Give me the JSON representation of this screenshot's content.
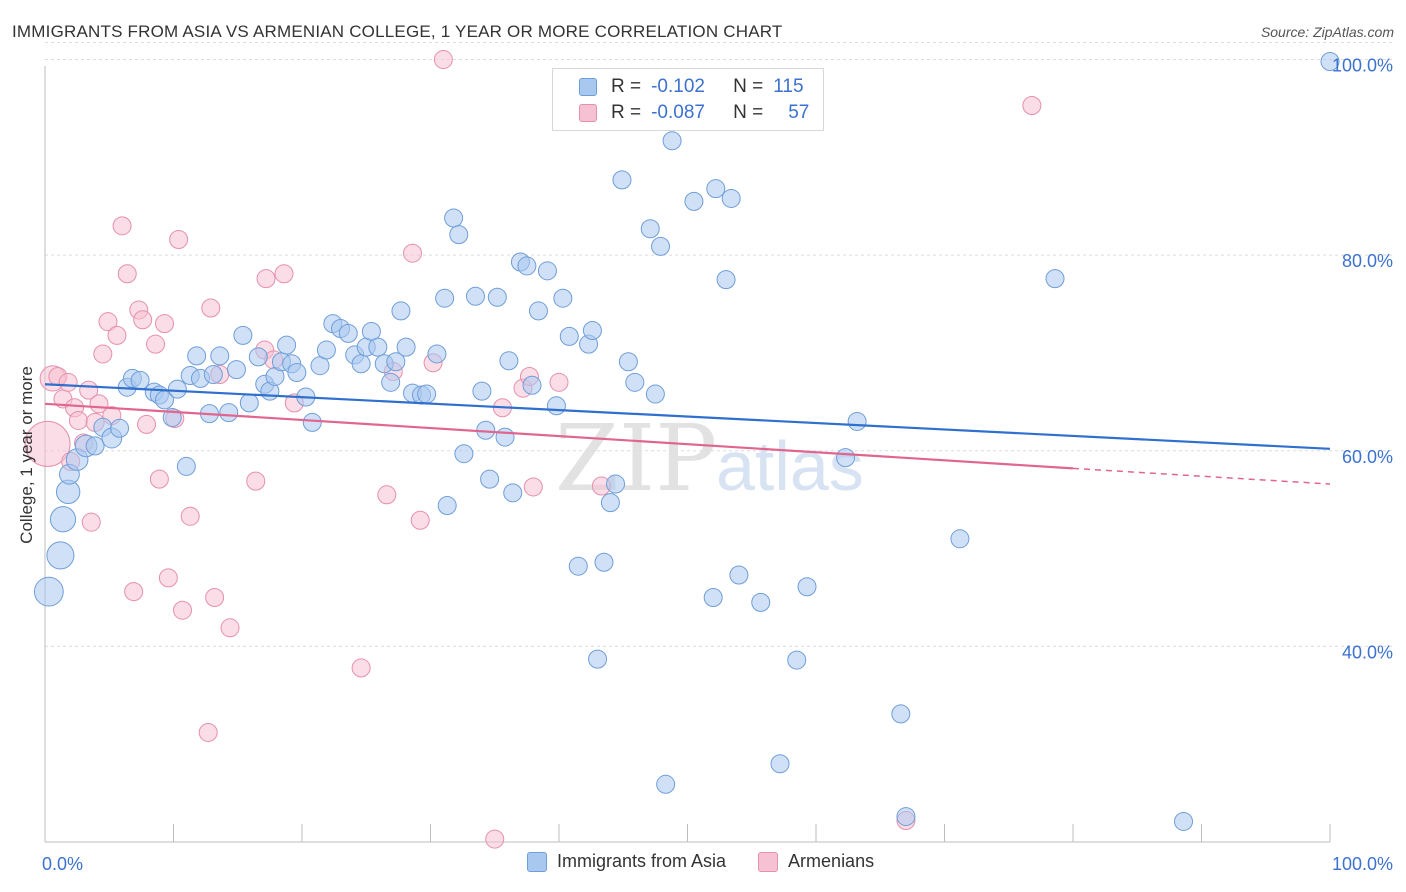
{
  "header": {
    "title": "IMMIGRANTS FROM ASIA VS ARMENIAN COLLEGE, 1 YEAR OR MORE CORRELATION CHART",
    "source": "Source: ZipAtlas.com"
  },
  "legend": {
    "r_label": "R =",
    "n_label": "N =",
    "rows": [
      {
        "r": "-0.102",
        "n": "115"
      },
      {
        "r": "-0.087",
        "n": "57"
      }
    ],
    "bottom": [
      "Immigrants from Asia",
      "Armenians"
    ]
  },
  "colors": {
    "asia_fill": "#a9c8f0",
    "asia_stroke": "#6f9ed8",
    "asia_line": "#2f6fce",
    "arm_fill": "#f6c1d2",
    "arm_stroke": "#e690ad",
    "arm_line": "#e0668f",
    "axis_label": "#3b72d0",
    "grid": "#dcdcdc"
  },
  "watermark": {
    "zip": "ZIP",
    "atlas": "atlas"
  },
  "chart_data": {
    "type": "scatter",
    "xlabel": "",
    "ylabel": "College, 1 year or more",
    "xlim": [
      0,
      100
    ],
    "ylim": [
      20,
      102
    ],
    "x_tick_labels": [
      "0.0%",
      "100.0%"
    ],
    "y_ticks": [
      40,
      60,
      80,
      100
    ],
    "y_tick_labels": [
      "40.0%",
      "60.0%",
      "80.0%",
      "100.0%"
    ],
    "grid": true,
    "legend_placement": "top-center",
    "series": [
      {
        "name": "Immigrants from Asia",
        "trend": {
          "x": [
            0,
            100
          ],
          "y": [
            66.8,
            60.2
          ]
        },
        "points": [
          [
            0.3,
            45.6,
            1.6
          ],
          [
            1.2,
            49.3,
            1.5
          ],
          [
            1.4,
            53.0,
            1.4
          ],
          [
            1.8,
            55.8,
            1.3
          ],
          [
            1.9,
            57.6,
            1.1
          ],
          [
            2.5,
            59.1,
            1.2
          ],
          [
            3.2,
            60.5,
            1.2
          ],
          [
            3.9,
            60.5,
            1.0
          ],
          [
            4.5,
            62.4,
            1.0
          ],
          [
            5.2,
            61.3,
            1.1
          ],
          [
            5.8,
            62.3,
            1.0
          ],
          [
            6.4,
            66.5,
            1.0
          ],
          [
            6.8,
            67.4,
            1.0
          ],
          [
            7.4,
            67.2,
            1.0
          ],
          [
            8.5,
            66.0,
            1.0
          ],
          [
            8.9,
            65.7,
            1.0
          ],
          [
            9.3,
            65.2,
            1.0
          ],
          [
            9.9,
            63.4,
            1.0
          ],
          [
            10.3,
            66.3,
            1.0
          ],
          [
            11.0,
            58.4,
            1.0
          ],
          [
            11.3,
            67.7,
            1.0
          ],
          [
            11.8,
            69.7,
            1.0
          ],
          [
            12.1,
            67.4,
            1.0
          ],
          [
            12.8,
            63.8,
            1.0
          ],
          [
            13.1,
            67.8,
            1.0
          ],
          [
            13.6,
            69.7,
            1.0
          ],
          [
            14.3,
            63.9,
            1.0
          ],
          [
            14.9,
            68.3,
            1.0
          ],
          [
            15.4,
            71.8,
            1.0
          ],
          [
            15.9,
            64.9,
            1.0
          ],
          [
            16.6,
            69.6,
            1.0
          ],
          [
            17.1,
            66.8,
            1.0
          ],
          [
            17.5,
            66.1,
            1.0
          ],
          [
            17.9,
            67.6,
            1.0
          ],
          [
            18.4,
            69.1,
            1.0
          ],
          [
            18.8,
            70.8,
            1.0
          ],
          [
            19.2,
            68.9,
            1.0
          ],
          [
            19.6,
            68.0,
            1.0
          ],
          [
            20.3,
            65.5,
            1.0
          ],
          [
            20.8,
            62.9,
            1.0
          ],
          [
            21.4,
            68.7,
            1.0
          ],
          [
            21.9,
            70.3,
            1.0
          ],
          [
            22.4,
            73.0,
            1.0
          ],
          [
            23.0,
            72.5,
            1.0
          ],
          [
            23.6,
            72.0,
            1.0
          ],
          [
            24.1,
            69.8,
            1.0
          ],
          [
            24.6,
            68.9,
            1.0
          ],
          [
            25.0,
            70.6,
            1.0
          ],
          [
            25.4,
            72.2,
            1.0
          ],
          [
            25.9,
            70.6,
            1.0
          ],
          [
            26.4,
            68.9,
            1.0
          ],
          [
            26.9,
            67.0,
            1.0
          ],
          [
            27.3,
            69.1,
            1.0
          ],
          [
            27.7,
            74.3,
            1.0
          ],
          [
            28.1,
            70.6,
            1.0
          ],
          [
            28.6,
            65.9,
            1.0
          ],
          [
            29.3,
            65.7,
            1.0
          ],
          [
            29.7,
            65.8,
            1.0
          ],
          [
            30.5,
            69.9,
            1.0
          ],
          [
            31.1,
            75.6,
            1.0
          ],
          [
            31.3,
            54.4,
            1.0
          ],
          [
            31.8,
            83.8,
            1.0
          ],
          [
            32.2,
            82.1,
            1.0
          ],
          [
            32.6,
            59.7,
            1.0
          ],
          [
            33.5,
            75.8,
            1.0
          ],
          [
            34.0,
            66.1,
            1.0
          ],
          [
            34.3,
            62.1,
            1.0
          ],
          [
            34.6,
            57.1,
            1.0
          ],
          [
            35.2,
            75.7,
            1.0
          ],
          [
            35.8,
            61.4,
            1.0
          ],
          [
            36.1,
            69.2,
            1.0
          ],
          [
            36.4,
            55.7,
            1.0
          ],
          [
            37.0,
            79.3,
            1.0
          ],
          [
            37.5,
            78.9,
            1.0
          ],
          [
            37.9,
            66.7,
            1.0
          ],
          [
            38.4,
            74.3,
            1.0
          ],
          [
            39.1,
            78.4,
            1.0
          ],
          [
            39.8,
            64.6,
            1.0
          ],
          [
            40.3,
            75.6,
            1.0
          ],
          [
            40.8,
            71.7,
            1.0
          ],
          [
            41.5,
            48.2,
            1.0
          ],
          [
            42.3,
            70.9,
            1.0
          ],
          [
            42.6,
            72.3,
            1.0
          ],
          [
            43.0,
            38.7,
            1.0
          ],
          [
            43.5,
            48.6,
            1.0
          ],
          [
            44.0,
            54.7,
            1.0
          ],
          [
            44.4,
            56.6,
            1.0
          ],
          [
            44.9,
            87.7,
            1.0
          ],
          [
            45.4,
            69.1,
            1.0
          ],
          [
            45.9,
            67.0,
            1.0
          ],
          [
            47.1,
            82.7,
            1.0
          ],
          [
            47.5,
            65.8,
            1.0
          ],
          [
            47.9,
            80.9,
            1.0
          ],
          [
            48.3,
            25.9,
            1.0
          ],
          [
            48.8,
            91.7,
            1.0
          ],
          [
            50.5,
            85.5,
            1.0
          ],
          [
            52.0,
            45.0,
            1.0
          ],
          [
            52.2,
            86.8,
            1.0
          ],
          [
            53.0,
            77.5,
            1.0
          ],
          [
            53.4,
            85.8,
            1.0
          ],
          [
            54.0,
            47.3,
            1.0
          ],
          [
            55.7,
            44.5,
            1.0
          ],
          [
            57.2,
            28.0,
            1.0
          ],
          [
            58.5,
            38.6,
            1.0
          ],
          [
            59.3,
            46.1,
            1.0
          ],
          [
            62.3,
            59.3,
            1.0
          ],
          [
            63.2,
            63.0,
            1.0
          ],
          [
            66.6,
            33.1,
            1.0
          ],
          [
            67.0,
            22.6,
            1.0
          ],
          [
            71.2,
            51.0,
            1.0
          ],
          [
            78.6,
            77.6,
            1.0
          ],
          [
            88.6,
            22.1,
            1.0
          ],
          [
            100.0,
            99.8,
            1.0
          ]
        ]
      },
      {
        "name": "Armenians",
        "trend": {
          "x": [
            0,
            80
          ],
          "y": [
            64.8,
            58.2
          ]
        },
        "dashed_extension": {
          "x": [
            80,
            100
          ],
          "y": [
            58.2,
            56.6
          ]
        },
        "points": [
          [
            0.2,
            60.7,
            2.5
          ],
          [
            0.6,
            67.4,
            1.4
          ],
          [
            1.0,
            67.6,
            1.0
          ],
          [
            1.4,
            65.3,
            1.0
          ],
          [
            1.8,
            67.0,
            1.0
          ],
          [
            2.0,
            58.9,
            1.0
          ],
          [
            2.3,
            64.4,
            1.0
          ],
          [
            2.6,
            63.1,
            1.0
          ],
          [
            3.0,
            60.8,
            1.0
          ],
          [
            3.4,
            66.2,
            1.0
          ],
          [
            3.6,
            52.7,
            1.0
          ],
          [
            3.9,
            62.9,
            1.0
          ],
          [
            4.2,
            64.8,
            1.0
          ],
          [
            4.5,
            69.9,
            1.0
          ],
          [
            4.9,
            73.2,
            1.0
          ],
          [
            5.2,
            63.6,
            1.0
          ],
          [
            5.6,
            71.8,
            1.0
          ],
          [
            6.0,
            83.0,
            1.0
          ],
          [
            6.4,
            78.1,
            1.0
          ],
          [
            6.9,
            45.6,
            1.0
          ],
          [
            7.3,
            74.4,
            1.0
          ],
          [
            7.6,
            73.4,
            1.0
          ],
          [
            7.9,
            62.7,
            1.0
          ],
          [
            8.6,
            70.9,
            1.0
          ],
          [
            8.9,
            57.1,
            1.0
          ],
          [
            9.3,
            73.0,
            1.0
          ],
          [
            9.6,
            47.0,
            1.0
          ],
          [
            10.1,
            63.3,
            1.0
          ],
          [
            10.4,
            81.6,
            1.0
          ],
          [
            10.7,
            43.7,
            1.0
          ],
          [
            11.3,
            53.3,
            1.0
          ],
          [
            12.9,
            74.6,
            1.0
          ],
          [
            12.7,
            31.2,
            1.0
          ],
          [
            13.2,
            45.0,
            1.0
          ],
          [
            13.6,
            67.8,
            1.0
          ],
          [
            14.4,
            41.9,
            1.0
          ],
          [
            16.4,
            56.9,
            1.0
          ],
          [
            17.1,
            70.3,
            1.0
          ],
          [
            17.2,
            77.6,
            1.0
          ],
          [
            17.8,
            69.3,
            1.0
          ],
          [
            18.6,
            78.1,
            1.0
          ],
          [
            19.4,
            64.9,
            1.0
          ],
          [
            24.6,
            37.8,
            1.0
          ],
          [
            26.6,
            55.5,
            1.0
          ],
          [
            27.1,
            68.1,
            1.0
          ],
          [
            28.6,
            80.2,
            1.0
          ],
          [
            29.2,
            52.9,
            1.0
          ],
          [
            30.2,
            69.0,
            1.0
          ],
          [
            31.0,
            100.0,
            1.0
          ],
          [
            35.0,
            20.3,
            1.0
          ],
          [
            35.6,
            64.4,
            1.0
          ],
          [
            37.2,
            66.4,
            1.0
          ],
          [
            38.0,
            56.3,
            1.0
          ],
          [
            37.7,
            67.6,
            1.0
          ],
          [
            40.0,
            67.0,
            1.0
          ],
          [
            43.3,
            56.4,
            1.0
          ],
          [
            67.0,
            22.2,
            1.0
          ],
          [
            76.8,
            95.3,
            1.0
          ]
        ]
      }
    ]
  }
}
